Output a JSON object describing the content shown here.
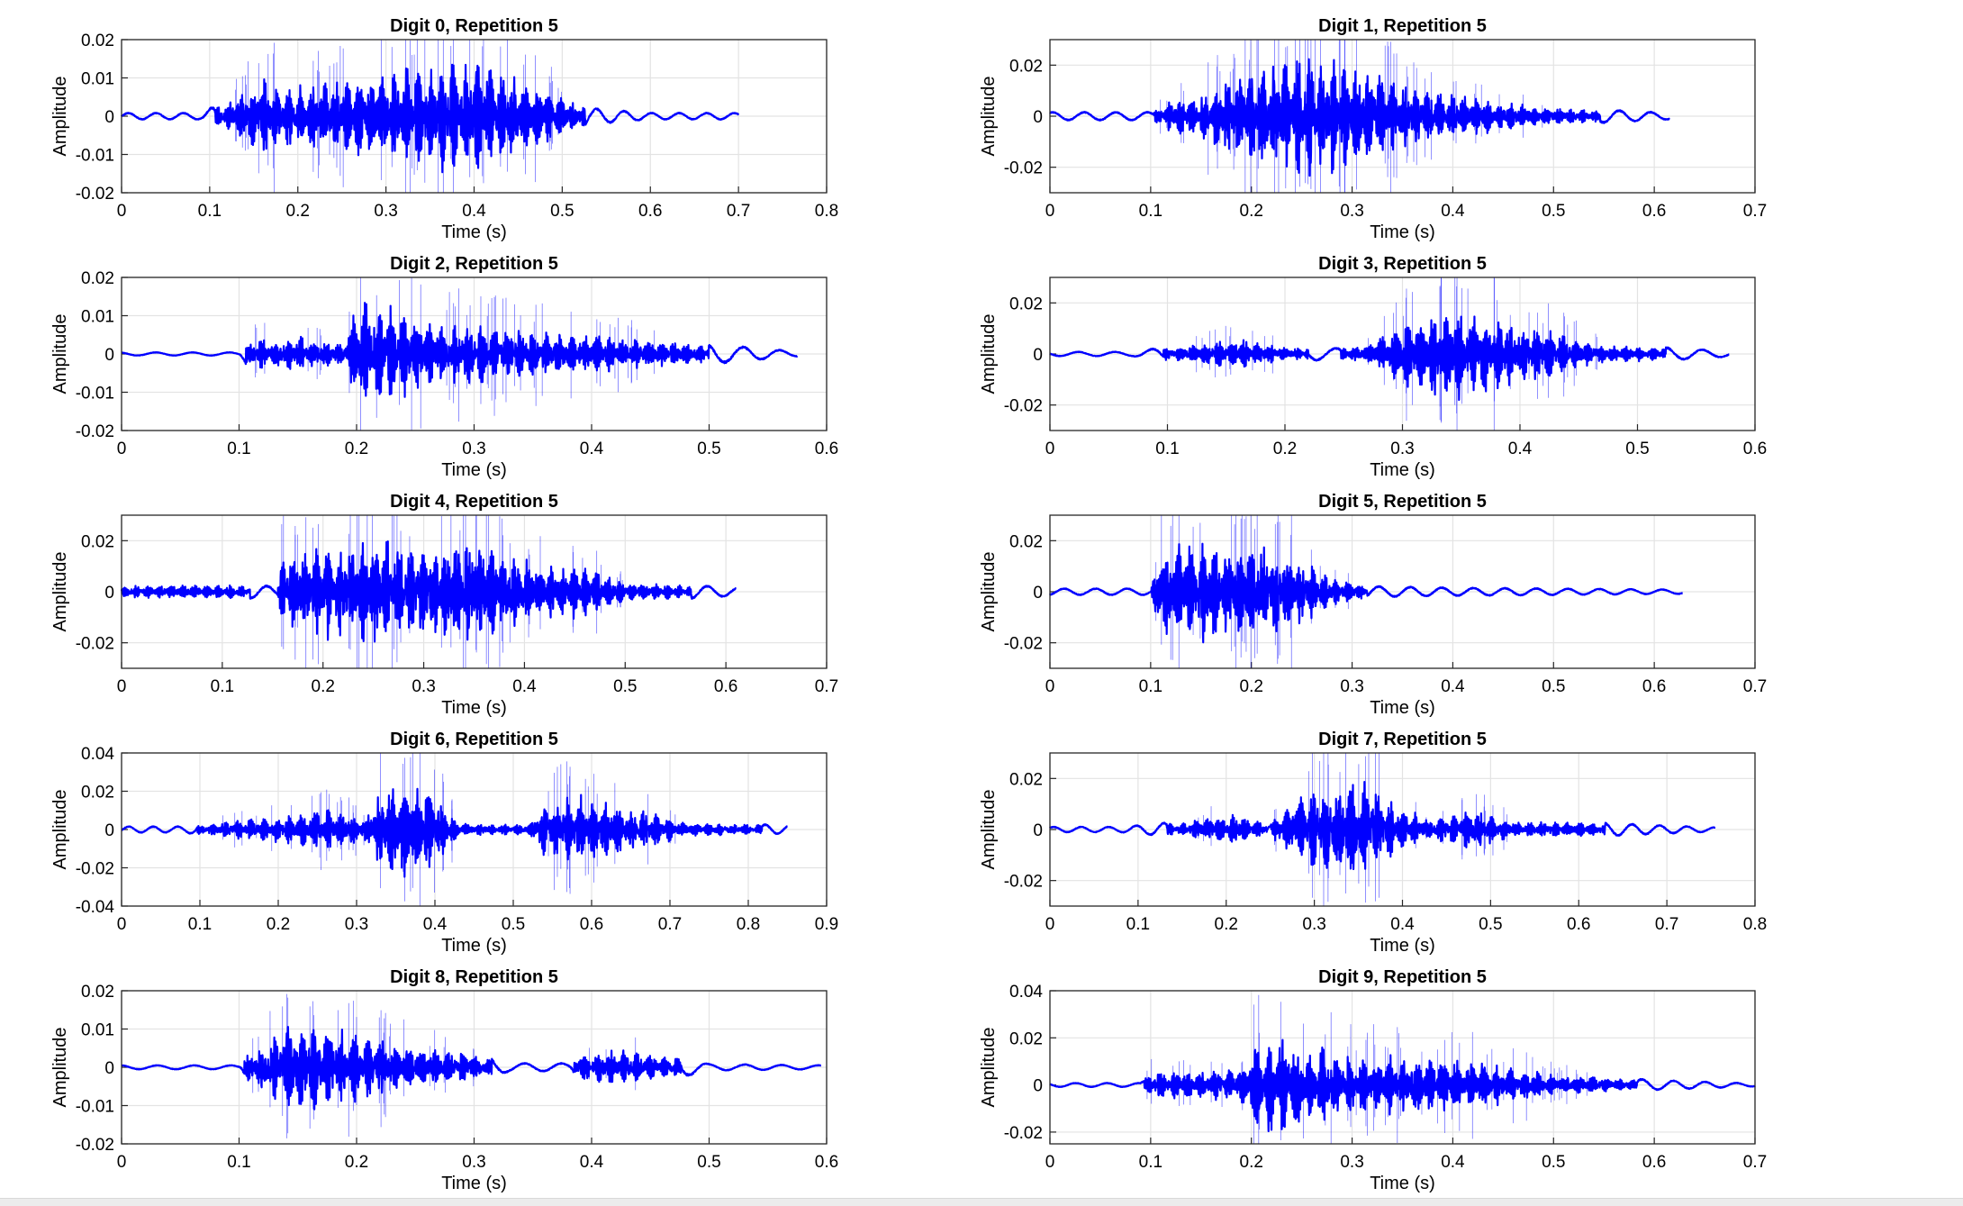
{
  "chart_data": [
    {
      "type": "line",
      "title": "Digit 0, Repetition 5",
      "xlabel": "Time (s)",
      "ylabel": "Amplitude",
      "xlim": [
        0,
        0.8
      ],
      "ylim": [
        -0.02,
        0.02
      ],
      "xticks": [
        "0",
        "0.1",
        "0.2",
        "0.3",
        "0.4",
        "0.5",
        "0.6",
        "0.7",
        "0.8"
      ],
      "yticks": [
        "0.02",
        "0.01",
        "0",
        "-0.01",
        "-0.02"
      ],
      "grid": true,
      "line_color": "#0000ff",
      "duration": 0.7,
      "envelope": {
        "t": [
          0,
          0.09,
          0.12,
          0.16,
          0.2,
          0.25,
          0.3,
          0.35,
          0.38,
          0.4,
          0.45,
          0.5,
          0.53,
          0.6,
          0.7
        ],
        "a": [
          0.0008,
          0.0008,
          0.004,
          0.011,
          0.009,
          0.011,
          0.013,
          0.015,
          0.017,
          0.017,
          0.012,
          0.006,
          0.002,
          0.0008,
          0.0008
        ]
      }
    },
    {
      "type": "line",
      "title": "Digit 1, Repetition 5",
      "xlabel": "Time (s)",
      "ylabel": "Amplitude",
      "xlim": [
        0,
        0.7
      ],
      "ylim": [
        -0.03,
        0.03
      ],
      "xticks": [
        "0",
        "0.1",
        "0.2",
        "0.3",
        "0.4",
        "0.5",
        "0.6",
        "0.7"
      ],
      "yticks": [
        "0.02",
        "0",
        "-0.02"
      ],
      "grid": true,
      "line_color": "#0000ff",
      "duration": 0.615,
      "envelope": {
        "t": [
          0,
          0.1,
          0.12,
          0.15,
          0.2,
          0.23,
          0.28,
          0.32,
          0.36,
          0.45,
          0.52,
          0.615
        ],
        "a": [
          0.0015,
          0.0015,
          0.007,
          0.01,
          0.022,
          0.026,
          0.025,
          0.02,
          0.013,
          0.006,
          0.003,
          0.0012
        ]
      }
    },
    {
      "type": "line",
      "title": "Digit 2, Repetition 5",
      "xlabel": "Time (s)",
      "ylabel": "Amplitude",
      "xlim": [
        0,
        0.6
      ],
      "ylim": [
        -0.02,
        0.02
      ],
      "xticks": [
        "0",
        "0.1",
        "0.2",
        "0.3",
        "0.4",
        "0.5",
        "0.6"
      ],
      "yticks": [
        "0.02",
        "0.01",
        "0",
        "-0.01",
        "-0.02"
      ],
      "grid": true,
      "line_color": "#0000ff",
      "duration": 0.575,
      "envelope": {
        "t": [
          0,
          0.1,
          0.11,
          0.15,
          0.19,
          0.2,
          0.21,
          0.26,
          0.32,
          0.4,
          0.48,
          0.575
        ],
        "a": [
          0.0004,
          0.0004,
          0.004,
          0.005,
          0.003,
          0.015,
          0.016,
          0.01,
          0.008,
          0.006,
          0.003,
          0.0006
        ]
      }
    },
    {
      "type": "line",
      "title": "Digit 3, Repetition 5",
      "xlabel": "Time (s)",
      "ylabel": "Amplitude",
      "xlim": [
        0,
        0.6
      ],
      "ylim": [
        -0.03,
        0.03
      ],
      "xticks": [
        "0",
        "0.1",
        "0.2",
        "0.3",
        "0.4",
        "0.5",
        "0.6"
      ],
      "yticks": [
        "0.02",
        "0",
        "-0.02"
      ],
      "grid": true,
      "line_color": "#0000ff",
      "duration": 0.578,
      "envelope": {
        "t": [
          0,
          0.07,
          0.12,
          0.16,
          0.2,
          0.24,
          0.27,
          0.3,
          0.34,
          0.38,
          0.43,
          0.47,
          0.578
        ],
        "a": [
          0.0008,
          0.0008,
          0.004,
          0.007,
          0.003,
          0.002,
          0.004,
          0.014,
          0.022,
          0.016,
          0.01,
          0.004,
          0.001
        ]
      }
    },
    {
      "type": "line",
      "title": "Digit 4, Repetition 5",
      "xlabel": "Time (s)",
      "ylabel": "Amplitude",
      "xlim": [
        0,
        0.7
      ],
      "ylim": [
        -0.03,
        0.03
      ],
      "xticks": [
        "0",
        "0.1",
        "0.2",
        "0.3",
        "0.4",
        "0.5",
        "0.6",
        "0.7"
      ],
      "yticks": [
        "0.02",
        "0",
        "-0.02"
      ],
      "grid": true,
      "line_color": "#0000ff",
      "duration": 0.61,
      "envelope": {
        "t": [
          0,
          0.1,
          0.155,
          0.16,
          0.2,
          0.25,
          0.3,
          0.35,
          0.38,
          0.42,
          0.46,
          0.5,
          0.61
        ],
        "a": [
          0.0025,
          0.003,
          0.002,
          0.017,
          0.02,
          0.023,
          0.021,
          0.024,
          0.017,
          0.012,
          0.011,
          0.004,
          0.0015
        ]
      }
    },
    {
      "type": "line",
      "title": "Digit 5, Repetition 5",
      "xlabel": "Time (s)",
      "ylabel": "Amplitude",
      "xlim": [
        0,
        0.7
      ],
      "ylim": [
        -0.03,
        0.03
      ],
      "xticks": [
        "0",
        "0.1",
        "0.2",
        "0.3",
        "0.4",
        "0.5",
        "0.6",
        "0.7"
      ],
      "yticks": [
        "0.02",
        "0",
        "-0.02"
      ],
      "grid": true,
      "line_color": "#0000ff",
      "duration": 0.628,
      "envelope": {
        "t": [
          0,
          0.1,
          0.11,
          0.15,
          0.2,
          0.24,
          0.28,
          0.32,
          0.4,
          0.5,
          0.628
        ],
        "a": [
          0.0012,
          0.0012,
          0.02,
          0.022,
          0.02,
          0.017,
          0.006,
          0.002,
          0.0015,
          0.0012,
          0.0008
        ]
      }
    },
    {
      "type": "line",
      "title": "Digit 6, Repetition 5",
      "xlabel": "Time (s)",
      "ylabel": "Amplitude",
      "xlim": [
        0,
        0.9
      ],
      "ylim": [
        -0.04,
        0.04
      ],
      "xticks": [
        "0",
        "0.1",
        "0.2",
        "0.3",
        "0.4",
        "0.5",
        "0.6",
        "0.7",
        "0.8",
        "0.9"
      ],
      "yticks": [
        "0.04",
        "0.02",
        "0",
        "-0.02",
        "-0.04"
      ],
      "grid": true,
      "line_color": "#0000ff",
      "duration": 0.85,
      "envelope": {
        "t": [
          0,
          0.08,
          0.12,
          0.2,
          0.27,
          0.31,
          0.33,
          0.36,
          0.4,
          0.43,
          0.48,
          0.52,
          0.54,
          0.58,
          0.65,
          0.72,
          0.85
        ],
        "a": [
          0.0015,
          0.0015,
          0.004,
          0.008,
          0.012,
          0.006,
          0.024,
          0.03,
          0.022,
          0.004,
          0.003,
          0.003,
          0.016,
          0.02,
          0.013,
          0.004,
          0.002
        ]
      }
    },
    {
      "type": "line",
      "title": "Digit 7, Repetition 5",
      "xlabel": "Time (s)",
      "ylabel": "Amplitude",
      "xlim": [
        0,
        0.8
      ],
      "ylim": [
        -0.03,
        0.03
      ],
      "xticks": [
        "0",
        "0.1",
        "0.2",
        "0.3",
        "0.4",
        "0.5",
        "0.6",
        "0.7",
        "0.8"
      ],
      "yticks": [
        "0.02",
        "0",
        "-0.02"
      ],
      "grid": true,
      "line_color": "#0000ff",
      "duration": 0.755,
      "envelope": {
        "t": [
          0,
          0.08,
          0.15,
          0.21,
          0.25,
          0.27,
          0.31,
          0.35,
          0.39,
          0.43,
          0.48,
          0.52,
          0.6,
          0.66,
          0.755
        ],
        "a": [
          0.001,
          0.001,
          0.003,
          0.007,
          0.002,
          0.012,
          0.019,
          0.023,
          0.012,
          0.004,
          0.009,
          0.004,
          0.003,
          0.002,
          0.0008
        ]
      }
    },
    {
      "type": "line",
      "title": "Digit 8, Repetition 5",
      "xlabel": "Time (s)",
      "ylabel": "Amplitude",
      "xlim": [
        0,
        0.6
      ],
      "ylim": [
        -0.02,
        0.02
      ],
      "xticks": [
        "0",
        "0.1",
        "0.2",
        "0.3",
        "0.4",
        "0.5",
        "0.6"
      ],
      "yticks": [
        "0.02",
        "0.01",
        "0",
        "-0.01",
        "-0.02"
      ],
      "grid": true,
      "line_color": "#0000ff",
      "duration": 0.595,
      "envelope": {
        "t": [
          0,
          0.1,
          0.11,
          0.15,
          0.2,
          0.25,
          0.3,
          0.33,
          0.38,
          0.39,
          0.43,
          0.47,
          0.5,
          0.595
        ],
        "a": [
          0.0005,
          0.0005,
          0.005,
          0.014,
          0.01,
          0.006,
          0.004,
          0.001,
          0.001,
          0.004,
          0.005,
          0.003,
          0.0008,
          0.0005
        ]
      }
    },
    {
      "type": "line",
      "title": "Digit 9, Repetition 5",
      "xlabel": "Time (s)",
      "ylabel": "Amplitude",
      "xlim": [
        0,
        0.7
      ],
      "ylim": [
        -0.025,
        0.04
      ],
      "xticks": [
        "0",
        "0.1",
        "0.2",
        "0.3",
        "0.4",
        "0.5",
        "0.6",
        "0.7"
      ],
      "yticks": [
        "0.04",
        "0.02",
        "0",
        "-0.02"
      ],
      "grid": true,
      "line_color": "#0000ff",
      "duration": 0.7,
      "envelope": {
        "t": [
          0,
          0.09,
          0.1,
          0.19,
          0.2,
          0.23,
          0.3,
          0.38,
          0.42,
          0.5,
          0.6,
          0.7
        ],
        "a": [
          0.0008,
          0.0008,
          0.006,
          0.008,
          0.02,
          0.024,
          0.014,
          0.013,
          0.012,
          0.005,
          0.002,
          0.0006
        ]
      }
    }
  ]
}
